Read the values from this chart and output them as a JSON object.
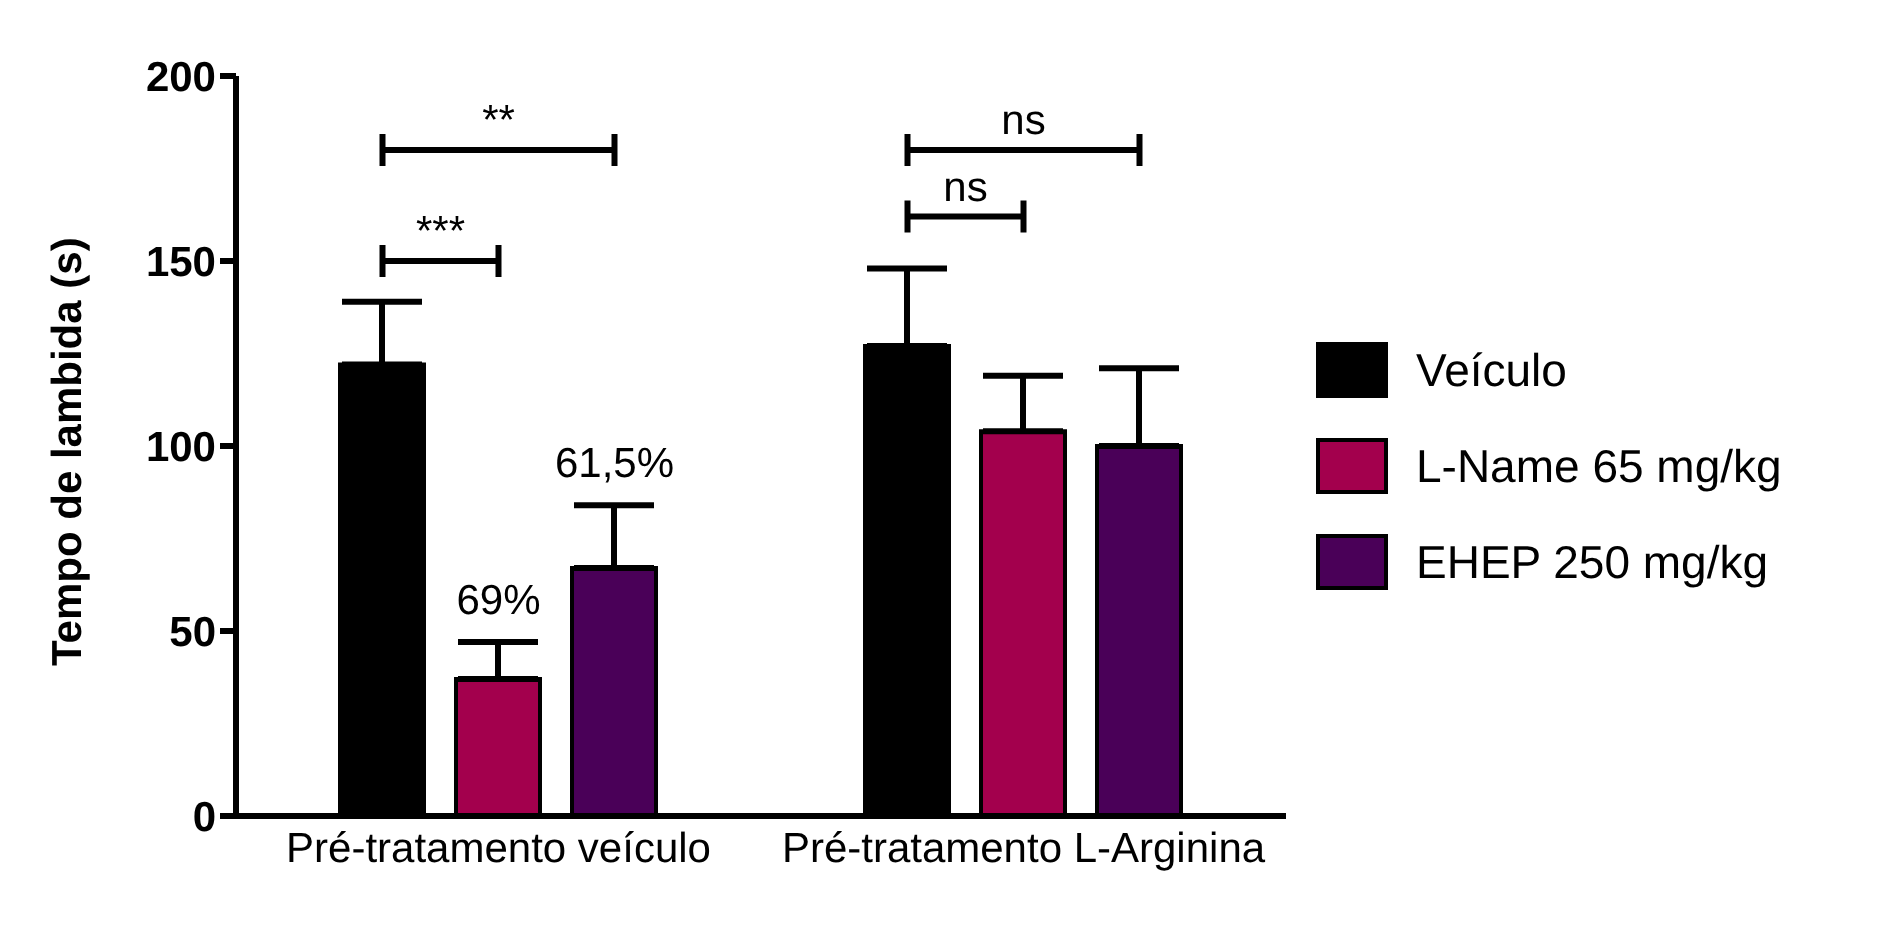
{
  "chart_data": {
    "type": "bar",
    "categories": [
      "Pré-tratamento veículo",
      "Pré-tratamento L-Arginina"
    ],
    "ylabel": "Tempo de lambida (s)",
    "ylim": [
      0,
      200
    ],
    "yticks": [
      0,
      50,
      100,
      150,
      200
    ],
    "grid": false,
    "legend": "right",
    "series": [
      {
        "name": "Veículo",
        "color": "#000000",
        "values": [
          122,
          127
        ],
        "errors": [
          [
            122,
            139
          ],
          [
            127,
            148
          ]
        ]
      },
      {
        "name": "L-Name 65 mg/kg",
        "color": "#a3004d",
        "values": [
          37,
          104
        ],
        "errors": [
          [
            37,
            47
          ],
          [
            104,
            119
          ]
        ]
      },
      {
        "name": "EHEP 250 mg/kg",
        "color": "#4a0058",
        "values": [
          67,
          100
        ],
        "errors": [
          [
            67,
            84
          ],
          [
            100,
            121
          ]
        ]
      }
    ],
    "annotations": [
      "***",
      "**",
      "ns",
      "ns",
      "69%",
      "61,5%"
    ]
  }
}
